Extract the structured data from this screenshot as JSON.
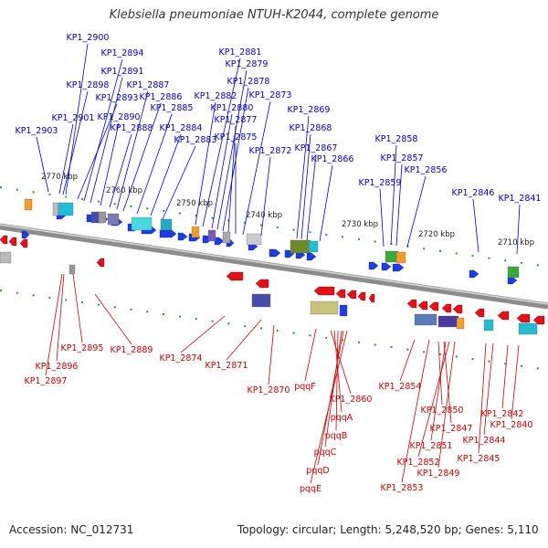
{
  "header": {
    "title": "Klebsiella pneumoniae NTUH-K2044, complete genome"
  },
  "footer": {
    "accession": "Accession: NC_012731",
    "summary": "Topology: circular; Length: 5,248,520 bp; Genes: 5,110"
  },
  "colors": {
    "forward_label": "#0000cc",
    "reverse_label": "#cc0000",
    "forward_gene": "#1a3de6",
    "reverse_gene": "#e81010",
    "backbone": "#8c8c8c",
    "tick": "#2a9a2a"
  },
  "diagram": {
    "strands": [
      "forward",
      "reverse"
    ],
    "ticks": [
      "2770 kbp",
      "2760 kbp",
      "2750 kbp",
      "2740 kbp",
      "2730 kbp",
      "2720 kbp",
      "2710 kbp"
    ],
    "forward_genes": [
      "KP1_2903",
      "KP1_2901",
      "KP1_2898",
      "KP1_2900",
      "KP1_2893",
      "KP1_2894",
      "KP1_2891",
      "KP1_2890",
      "KP1_2888",
      "KP1_2887",
      "KP1_2886",
      "KP1_2885",
      "KP1_2884",
      "KP1_2883",
      "KP1_2882",
      "KP1_2881",
      "KP1_2880",
      "KP1_2879",
      "KP1_2878",
      "KP1_2877",
      "KP1_2875",
      "KP1_2873",
      "KP1_2872",
      "KP1_2869",
      "KP1_2868",
      "KP1_2867",
      "KP1_2866",
      "KP1_2858",
      "KP1_2857",
      "KP1_2859",
      "KP1_2856",
      "KP1_2846",
      "KP1_2841"
    ],
    "reverse_genes": [
      "KP1_2897",
      "KP1_2896",
      "KP1_2895",
      "KP1_2889",
      "KP1_2874",
      "KP1_2871",
      "KP1_2870",
      "pqqF",
      "KP1_2860",
      "pqqA",
      "pqqB",
      "pqqC",
      "pqqD",
      "pqqE",
      "KP1_2854",
      "KP1_2850",
      "KP1_2847",
      "KP1_2851",
      "KP1_2852",
      "KP1_2849",
      "KP1_2853",
      "KP1_2842",
      "KP1_2844",
      "KP1_2845",
      "KP1_2840"
    ]
  }
}
